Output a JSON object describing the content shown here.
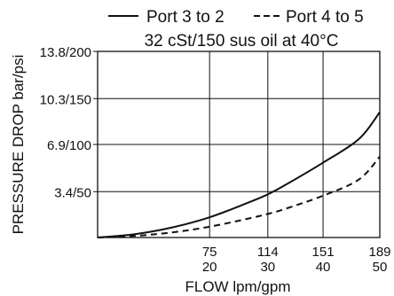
{
  "chart_data": {
    "type": "line",
    "subtitle": "32 cSt/150 sus oil at 40°C",
    "xlabel": "FLOW lpm/gpm",
    "ylabel": "PRESSURE DROP bar/psi",
    "xlim": [
      0,
      189
    ],
    "ylim": [
      0,
      13.8
    ],
    "grid": true,
    "legend_position": "top",
    "x_ticks": [
      {
        "value": 75,
        "label1": "75",
        "label2": "20"
      },
      {
        "value": 114,
        "label1": "114",
        "label2": "30"
      },
      {
        "value": 151,
        "label1": "151",
        "label2": "40"
      },
      {
        "value": 189,
        "label1": "189",
        "label2": "50"
      }
    ],
    "y_ticks": [
      {
        "value": 3.4,
        "label": "3.4/50"
      },
      {
        "value": 6.9,
        "label": "6.9/100"
      },
      {
        "value": 10.3,
        "label": "10.3/150"
      },
      {
        "value": 13.8,
        "label": "13.8/200"
      }
    ],
    "x": [
      0,
      25,
      50,
      75,
      100,
      114,
      125,
      151,
      175,
      189
    ],
    "series": [
      {
        "name": "Port 3 to 2",
        "style": "solid",
        "values": [
          0,
          0.25,
          0.75,
          1.5,
          2.55,
          3.2,
          3.85,
          5.55,
          7.3,
          9.3
        ]
      },
      {
        "name": "Port 4 to 5",
        "style": "dashed",
        "values": [
          0,
          0.12,
          0.38,
          0.8,
          1.38,
          1.75,
          2.1,
          3.1,
          4.3,
          6.0
        ]
      }
    ],
    "colors": {
      "line": "#111111",
      "grid": "#111111",
      "background": "#ffffff"
    }
  }
}
